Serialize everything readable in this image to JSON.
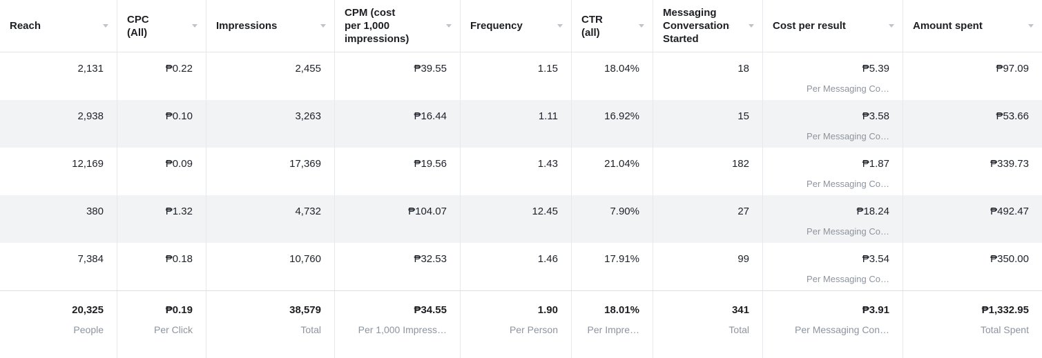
{
  "table": {
    "header": {
      "reach": "Reach",
      "cpc": "CPC\n(All)",
      "impressions": "Impressions",
      "cpm": "CPM (cost\nper 1,000\nimpressions)",
      "frequency": "Frequency",
      "ctr": "CTR\n(all)",
      "messaging": "Messaging\nConversations\nStarted",
      "cost_per_result": "Cost per result",
      "amount_spent": "Amount spent"
    },
    "rows": [
      {
        "reach": "2,131",
        "cpc": "₱0.22",
        "impressions": "2,455",
        "cpm": "₱39.55",
        "frequency": "1.15",
        "ctr": "18.04%",
        "messaging": "18",
        "cost_per_result": "₱5.39",
        "cost_per_result_sub": "Per Messaging Co…",
        "amount_spent": "₱97.09"
      },
      {
        "reach": "2,938",
        "cpc": "₱0.10",
        "impressions": "3,263",
        "cpm": "₱16.44",
        "frequency": "1.11",
        "ctr": "16.92%",
        "messaging": "15",
        "cost_per_result": "₱3.58",
        "cost_per_result_sub": "Per Messaging Co…",
        "amount_spent": "₱53.66"
      },
      {
        "reach": "12,169",
        "cpc": "₱0.09",
        "impressions": "17,369",
        "cpm": "₱19.56",
        "frequency": "1.43",
        "ctr": "21.04%",
        "messaging": "182",
        "cost_per_result": "₱1.87",
        "cost_per_result_sub": "Per Messaging Co…",
        "amount_spent": "₱339.73"
      },
      {
        "reach": "380",
        "cpc": "₱1.32",
        "impressions": "4,732",
        "cpm": "₱104.07",
        "frequency": "12.45",
        "ctr": "7.90%",
        "messaging": "27",
        "cost_per_result": "₱18.24",
        "cost_per_result_sub": "Per Messaging Co…",
        "amount_spent": "₱492.47"
      },
      {
        "reach": "7,384",
        "cpc": "₱0.18",
        "impressions": "10,760",
        "cpm": "₱32.53",
        "frequency": "1.46",
        "ctr": "17.91%",
        "messaging": "99",
        "cost_per_result": "₱3.54",
        "cost_per_result_sub": "Per Messaging Co…",
        "amount_spent": "₱350.00"
      }
    ],
    "totals": {
      "reach": {
        "value": "20,325",
        "sub": "People"
      },
      "cpc": {
        "value": "₱0.19",
        "sub": "Per Click"
      },
      "impressions": {
        "value": "38,579",
        "sub": "Total"
      },
      "cpm": {
        "value": "₱34.55",
        "sub": "Per 1,000 Impress…"
      },
      "frequency": {
        "value": "1.90",
        "sub": "Per Person"
      },
      "ctr": {
        "value": "18.01%",
        "sub": "Per Impre…"
      },
      "messaging": {
        "value": "341",
        "sub": "Total"
      },
      "cost_per_result": {
        "value": "₱3.91",
        "sub": "Per Messaging Con…"
      },
      "amount_spent": {
        "value": "₱1,332.95",
        "sub": "Total Spent"
      }
    },
    "colors": {
      "header_text": "#1c1e21",
      "value_text": "#1d2129",
      "sub_text": "#8d949e",
      "row_alt_bg": "#f2f3f5",
      "divider": "#e6e8ec"
    }
  }
}
